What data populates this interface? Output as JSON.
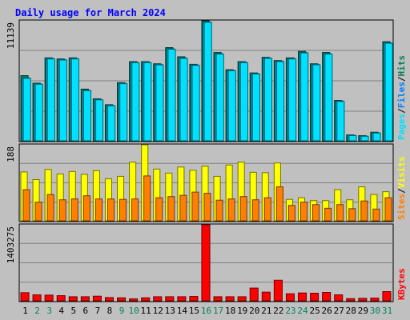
{
  "title": "Daily usage for March 2024",
  "colors": {
    "background": "#c0c0c0",
    "title": "#0000ff",
    "hits": "#00805c",
    "files": "#00c0ff",
    "pages": "#00e0ff",
    "visits": "#ffff00",
    "sites": "#ff8000",
    "kbytes": "#ff0000",
    "weekday_label": "#000000",
    "weekend_label": "#00805c",
    "gridline": "#808080"
  },
  "chart_data": [
    {
      "type": "bar",
      "panel": "hits_files_pages",
      "scale_label": "11139",
      "ylim": [
        0,
        11139
      ],
      "grid": true,
      "legend": [
        {
          "name": "Pages",
          "color": "#00e0ff"
        },
        {
          "name": "/",
          "color": "#000000"
        },
        {
          "name": "Files",
          "color": "#0080ff"
        },
        {
          "name": "/",
          "color": "#000000"
        },
        {
          "name": "Hits",
          "color": "#00805c"
        }
      ],
      "categories": [
        "1",
        "2",
        "3",
        "4",
        "5",
        "6",
        "7",
        "8",
        "9",
        "10",
        "11",
        "12",
        "13",
        "14",
        "15",
        "16",
        "17",
        "18",
        "19",
        "20",
        "21",
        "22",
        "23",
        "24",
        "25",
        "26",
        "27",
        "28",
        "29",
        "30",
        "31"
      ],
      "series": [
        {
          "name": "Hits",
          "values": [
            6050,
            5350,
            7700,
            7600,
            7700,
            4800,
            3900,
            3350,
            5400,
            7350,
            7350,
            7150,
            8650,
            7800,
            7100,
            11139,
            8200,
            6600,
            7350,
            6300,
            7750,
            7450,
            7700,
            8300,
            7150,
            8200,
            3750,
            550,
            480,
            800,
            9200
          ]
        },
        {
          "name": "Files",
          "values": [
            5850,
            5300,
            7650,
            7550,
            7650,
            4700,
            3850,
            3300,
            5350,
            7300,
            7300,
            7100,
            8550,
            7700,
            7050,
            11050,
            8100,
            6550,
            7300,
            6250,
            7700,
            7400,
            7650,
            8200,
            7100,
            8100,
            3700,
            520,
            450,
            750,
            9100
          ]
        },
        {
          "name": "Pages",
          "values": [
            5800,
            5250,
            7600,
            7500,
            7600,
            4650,
            3800,
            3250,
            5300,
            7250,
            7250,
            7050,
            8500,
            7650,
            7000,
            11000,
            8050,
            6500,
            7250,
            6200,
            7650,
            7350,
            7600,
            8150,
            7050,
            8050,
            3650,
            480,
            420,
            720,
            9050
          ]
        }
      ]
    },
    {
      "type": "bar",
      "panel": "visits_sites",
      "scale_label": "188",
      "ylim": [
        0,
        188
      ],
      "grid": true,
      "legend": [
        {
          "name": "Sites",
          "color": "#ff8000"
        },
        {
          "name": "/",
          "color": "#000000"
        },
        {
          "name": "Visits",
          "color": "#ffff00"
        }
      ],
      "categories": [
        "1",
        "2",
        "3",
        "4",
        "5",
        "6",
        "7",
        "8",
        "9",
        "10",
        "11",
        "12",
        "13",
        "14",
        "15",
        "16",
        "17",
        "18",
        "19",
        "20",
        "21",
        "22",
        "23",
        "24",
        "25",
        "26",
        "27",
        "28",
        "29",
        "30",
        "31"
      ],
      "series": [
        {
          "name": "Visits",
          "values": [
            121,
            102,
            127,
            116,
            122,
            115,
            124,
            104,
            110,
            145,
            188,
            128,
            118,
            133,
            125,
            135,
            110,
            138,
            145,
            120,
            119,
            143,
            53,
            57,
            50,
            50,
            77,
            52,
            84,
            65,
            72
          ]
        },
        {
          "name": "Sites",
          "values": [
            77,
            46,
            65,
            52,
            54,
            62,
            54,
            54,
            53,
            54,
            111,
            57,
            60,
            63,
            71,
            68,
            51,
            54,
            60,
            52,
            57,
            84,
            38,
            46,
            40,
            31,
            40,
            30,
            49,
            29,
            57
          ]
        }
      ]
    },
    {
      "type": "bar",
      "panel": "kbytes",
      "scale_label": "1403275",
      "ylim": [
        0,
        1403275
      ],
      "grid": true,
      "legend": [
        {
          "name": "KBytes",
          "color": "#ff0000"
        }
      ],
      "categories": [
        "1",
        "2",
        "3",
        "4",
        "5",
        "6",
        "7",
        "8",
        "9",
        "10",
        "11",
        "12",
        "13",
        "14",
        "15",
        "16",
        "17",
        "18",
        "19",
        "20",
        "21",
        "22",
        "23",
        "24",
        "25",
        "26",
        "27",
        "28",
        "29",
        "30",
        "31"
      ],
      "series": [
        {
          "name": "KBytes",
          "values": [
            150000,
            110000,
            105000,
            95000,
            75000,
            75000,
            85000,
            60000,
            55000,
            35000,
            55000,
            75000,
            75000,
            75000,
            80000,
            1403275,
            75000,
            75000,
            75000,
            235000,
            160000,
            380000,
            130000,
            145000,
            140000,
            155000,
            110000,
            40000,
            45000,
            50000,
            170000
          ]
        }
      ]
    }
  ],
  "x_axis": {
    "labels": [
      "1",
      "2",
      "3",
      "4",
      "5",
      "6",
      "7",
      "8",
      "9",
      "10",
      "11",
      "12",
      "13",
      "14",
      "15",
      "16",
      "17",
      "18",
      "19",
      "20",
      "21",
      "22",
      "23",
      "24",
      "25",
      "26",
      "27",
      "28",
      "29",
      "30",
      "31"
    ],
    "weekend_days": [
      "2",
      "3",
      "9",
      "10",
      "16",
      "17",
      "23",
      "24",
      "30",
      "31"
    ]
  }
}
